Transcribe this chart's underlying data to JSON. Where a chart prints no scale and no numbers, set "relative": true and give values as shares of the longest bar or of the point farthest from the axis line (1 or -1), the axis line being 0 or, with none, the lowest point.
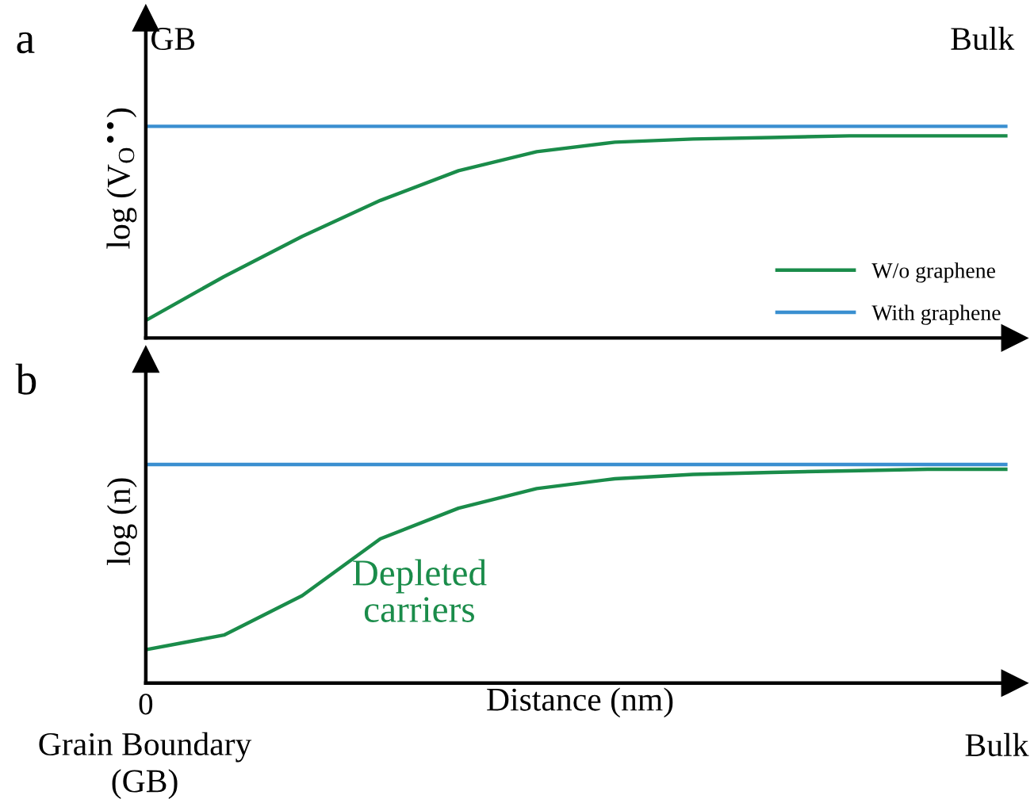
{
  "chart_data": [
    {
      "type": "line",
      "title": "a",
      "ylabel": "log (V$_{O}$$^{••}$)",
      "relative": true,
      "tick_labels": false,
      "legend": "bottom right",
      "marker": "none",
      "line_style": "solid",
      "categories": [
        null,
        null,
        null,
        null,
        null,
        null,
        null,
        null,
        null,
        null,
        null,
        null
      ],
      "annotations": [
        "GB",
        "Bulk"
      ],
      "series": [
        {
          "name": "W/o graphene",
          "color": "#1a8c4a",
          "values": [
            0.083,
            0.29,
            0.48,
            0.65,
            0.79,
            0.88,
            0.925,
            0.94,
            0.947,
            0.955,
            0.955,
            0.955
          ]
        },
        {
          "name": "With graphene",
          "color": "#3a8fd0",
          "values": [
            1,
            1,
            1,
            1,
            1,
            1,
            1,
            1,
            1,
            1,
            1,
            1
          ]
        }
      ]
    },
    {
      "type": "line",
      "title": "b",
      "ylabel": "log (n)",
      "xlabel": "Distance (nm)",
      "relative": true,
      "tick_labels": false,
      "marker": "none",
      "line_style": "solid",
      "categories": [
        null,
        null,
        null,
        null,
        null,
        null,
        null,
        null,
        null,
        null,
        null,
        null
      ],
      "annotations": [
        "Depleted carriers",
        "Grain Boundary (GB)",
        "Bulk",
        "0"
      ],
      "series": [
        {
          "color": "#1a8c4a",
          "values": [
            0.153,
            0.22,
            0.4,
            0.66,
            0.8,
            0.89,
            0.935,
            0.955,
            0.964,
            0.971,
            0.978,
            0.978
          ]
        },
        {
          "color": "#3a8fd0",
          "values": [
            1,
            1,
            1,
            1,
            1,
            1,
            1,
            1,
            1,
            1,
            1,
            1
          ]
        }
      ]
    }
  ]
}
